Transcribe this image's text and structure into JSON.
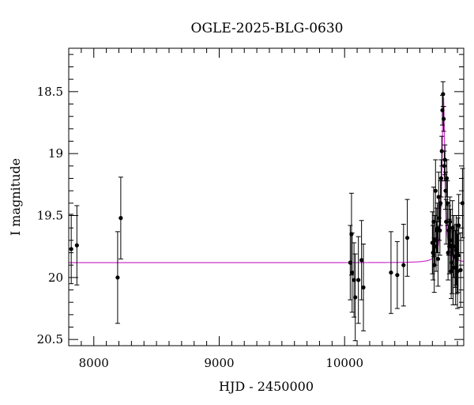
{
  "chart_data": {
    "type": "scatter",
    "title": "OGLE-2025-BLG-0630",
    "xlabel": "HJD - 2450000",
    "ylabel": "I magnitude",
    "xlim": [
      7800,
      10950
    ],
    "ylim": [
      20.55,
      18.15
    ],
    "y_inverted": true,
    "grid": false,
    "x_ticks": [
      8000,
      9000,
      10000
    ],
    "x_tick_labels": [
      "8000",
      "9000",
      "10000"
    ],
    "y_ticks": [
      18.5,
      19,
      19.5,
      20,
      20.5
    ],
    "y_tick_labels": [
      "18.5",
      "19",
      "19.5",
      "20",
      "20.5"
    ],
    "colors": {
      "points": "#000000",
      "model": "#cc33cc"
    },
    "points": {
      "x": [
        7820,
        7865,
        8190,
        8215,
        10045,
        10055,
        10060,
        10075,
        10085,
        10110,
        10135,
        10150,
        10370,
        10420,
        10470,
        10500,
        10700,
        10705,
        10710,
        10715,
        10720,
        10725,
        10730,
        10735,
        10740,
        10745,
        10750,
        10755,
        10760,
        10765,
        10770,
        10775,
        10780,
        10785,
        10790,
        10795,
        10800,
        10805,
        10810,
        10815,
        10820,
        10825,
        10830,
        10835,
        10840,
        10845,
        10850,
        10855,
        10860,
        10865,
        10870,
        10880,
        10890,
        10900,
        10910,
        10925,
        10940,
        10885,
        10895,
        10905
      ],
      "y": [
        19.77,
        19.74,
        20.0,
        19.52,
        19.88,
        19.65,
        19.96,
        20.02,
        20.16,
        20.02,
        19.86,
        20.08,
        19.96,
        19.98,
        19.9,
        19.68,
        19.72,
        19.8,
        19.55,
        19.9,
        19.7,
        19.3,
        19.75,
        19.62,
        19.6,
        19.85,
        19.35,
        19.52,
        19.62,
        19.4,
        19.2,
        18.98,
        18.65,
        18.52,
        18.72,
        19.1,
        19.05,
        19.3,
        19.55,
        19.2,
        19.4,
        19.8,
        19.62,
        19.75,
        19.55,
        19.7,
        19.95,
        19.88,
        19.6,
        19.92,
        19.75,
        19.83,
        19.78,
        19.95,
        19.58,
        19.94,
        19.4,
        19.92,
        19.85,
        19.82
      ],
      "err": [
        0.28,
        0.32,
        0.37,
        0.33,
        0.3,
        0.33,
        0.32,
        0.3,
        0.35,
        0.35,
        0.32,
        0.35,
        0.33,
        0.27,
        0.33,
        0.31,
        0.25,
        0.22,
        0.28,
        0.22,
        0.2,
        0.25,
        0.2,
        0.18,
        0.2,
        0.22,
        0.2,
        0.18,
        0.2,
        0.18,
        0.15,
        0.12,
        0.12,
        0.1,
        0.1,
        0.12,
        0.12,
        0.15,
        0.18,
        0.15,
        0.18,
        0.22,
        0.2,
        0.22,
        0.2,
        0.25,
        0.22,
        0.25,
        0.22,
        0.3,
        0.25,
        0.25,
        0.28,
        0.3,
        0.25,
        0.3,
        0.28,
        0.3,
        0.28,
        0.3
      ]
    },
    "model": {
      "baseline": 19.88,
      "peak_time": 10788,
      "peak_magnitude": 18.53,
      "time_scale_days": 10
    }
  }
}
